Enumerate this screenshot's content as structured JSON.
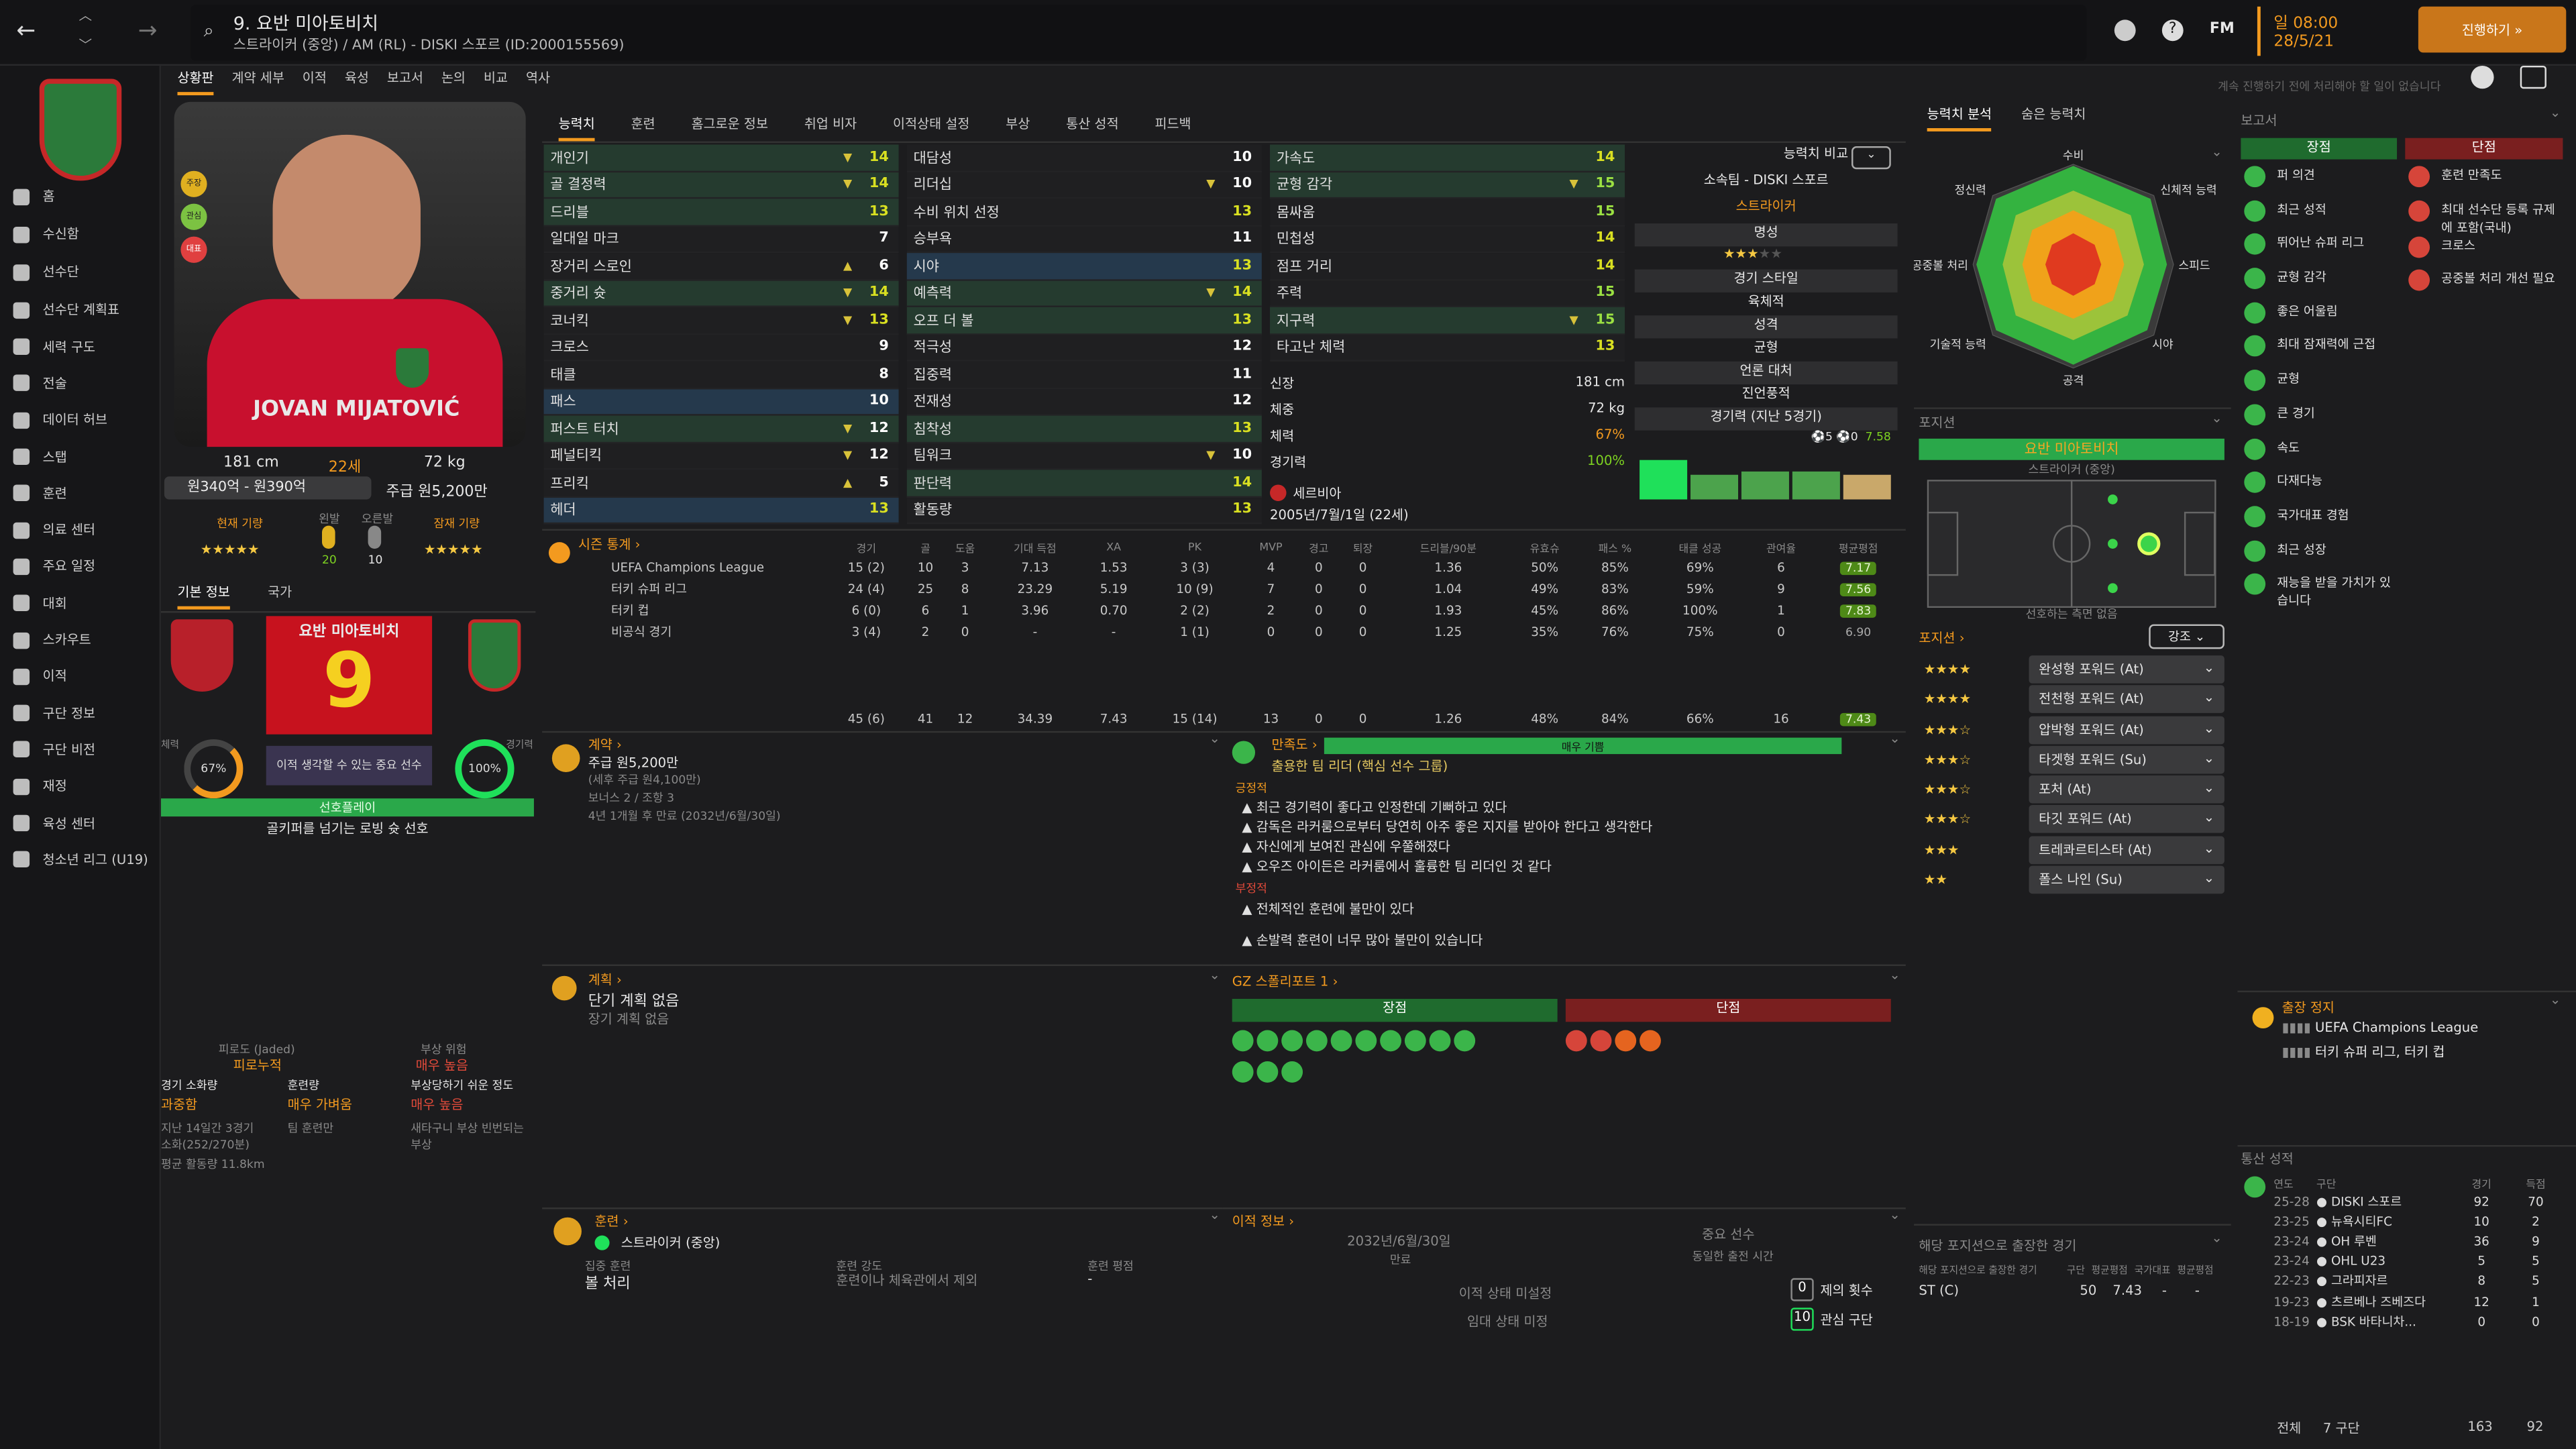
{
  "header": {
    "number_name": "9. 요반 미아토비치",
    "subtitle": "스트라이커 (중앙) / AM (RL) - DISKI 스포르 (ID:2000155569)",
    "time": "일 08:00",
    "date": "28/5/21",
    "continue": "진행하기",
    "fm": "FM",
    "notice_text": "계속 진행하기 전에 처리해야 할 일이 없습니다"
  },
  "nav_tabs": [
    "상황판",
    "계약 세부",
    "이적",
    "육성",
    "보고서",
    "논의",
    "비교",
    "역사"
  ],
  "sidebar": [
    "홈",
    "수신함",
    "선수단",
    "선수단 계획표",
    "세력 구도",
    "전술",
    "데이터 허브",
    "스탭",
    "훈련",
    "의료 센터",
    "주요 일정",
    "대회",
    "스카우트",
    "이적",
    "구단 정보",
    "구단 비전",
    "재정",
    "육성 센터",
    "청소년 리그 (U19)"
  ],
  "player": {
    "jersey_name": "JOVAN MIJATOVIĆ",
    "height": "181 cm",
    "age": "22세",
    "weight": "72 kg",
    "value": "원340억 - 원390억",
    "wage": "주급 원5,200만",
    "cur_ability": "현재 기량",
    "pot_ability": "잠재 기량",
    "left_foot": "왼발",
    "right_foot": "오른발",
    "left_val": "20",
    "right_val": "10",
    "badges": [
      "주장",
      "관심",
      "대표"
    ]
  },
  "basic_tabs": [
    "기본 정보",
    "국가"
  ],
  "card": {
    "name": "요반 미아토비치",
    "number": "9",
    "fitness_label": "체력",
    "fitness": "67%",
    "sharp_label": "경기력",
    "sharp": "100%",
    "role_text": "이적 생각할 수 있는 중요 선수",
    "status": "선호플레이",
    "desc": "골키퍼를 넘기는 로빙 슛 선호"
  },
  "fatigue": {
    "l1": "피로도 (Jaded)",
    "l1v": "피로누적",
    "l2": "부상 위험",
    "l2v": "매우 높음",
    "l3": "경기 소화량",
    "l3v": "과중함",
    "l4": "훈련량",
    "l4v": "매우 가벼움",
    "l5": "부상당하기 쉬운 정도",
    "l5v": "매우 높음",
    "n1": "지난 14일간 3경기",
    "n2": "소화(252/270분)",
    "n3": "평균 활동량 11.8km",
    "n4": "팀 훈련만",
    "n5": "새타구니 부상 빈번되는 부상"
  },
  "attr_tabs": [
    "능력치",
    "훈련",
    "홈그로운 정보",
    "취업 비자",
    "이적상태 설정",
    "부상",
    "통산 성적",
    "피드백"
  ],
  "attr_col1": [
    [
      "개인기",
      "▼",
      "14",
      "hl-green"
    ],
    [
      "골 결정력",
      "▼",
      "14",
      "hl-green"
    ],
    [
      "드리블",
      "",
      "13",
      "hl-green"
    ],
    [
      "일대일 마크",
      "",
      "7",
      "hl-none"
    ],
    [
      "장거리 스로인",
      "▲",
      "6",
      "hl-none"
    ],
    [
      "중거리 슛",
      "▼",
      "14",
      "hl-green"
    ],
    [
      "코너킥",
      "▼",
      "13",
      "hl-none"
    ],
    [
      "크로스",
      "",
      "9",
      "hl-none"
    ],
    [
      "태클",
      "",
      "8",
      "hl-none"
    ],
    [
      "패스",
      "",
      "10",
      "hl-blue"
    ],
    [
      "퍼스트 터치",
      "▼",
      "12",
      "hl-green"
    ],
    [
      "페널티킥",
      "▼",
      "12",
      "hl-none"
    ],
    [
      "프리킥",
      "▲",
      "5",
      "hl-none"
    ],
    [
      "헤더",
      "",
      "13",
      "hl-blue"
    ]
  ],
  "attr_col2": [
    [
      "대담성",
      "",
      "10",
      "hl-none"
    ],
    [
      "리더십",
      "▼",
      "10",
      "hl-none"
    ],
    [
      "수비 위치 선정",
      "",
      "13",
      "hl-none"
    ],
    [
      "승부욕",
      "",
      "11",
      "hl-none"
    ],
    [
      "시야",
      "",
      "13",
      "hl-blue"
    ],
    [
      "예측력",
      "▼",
      "14",
      "hl-green"
    ],
    [
      "오프 더 볼",
      "",
      "13",
      "hl-green"
    ],
    [
      "적극성",
      "",
      "12",
      "hl-none"
    ],
    [
      "집중력",
      "",
      "11",
      "hl-none"
    ],
    [
      "전재성",
      "",
      "12",
      "hl-none"
    ],
    [
      "침착성",
      "",
      "13",
      "hl-green"
    ],
    [
      "팀워크",
      "▼",
      "10",
      "hl-none"
    ],
    [
      "판단력",
      "",
      "14",
      "hl-green"
    ],
    [
      "활동량",
      "",
      "13",
      "hl-none"
    ]
  ],
  "attr_col3": [
    [
      "가속도",
      "",
      "14",
      "hl-green"
    ],
    [
      "균형 감각",
      "▼",
      "15",
      "hl-green"
    ],
    [
      "몸싸움",
      "",
      "15",
      "hl-none"
    ],
    [
      "민첩성",
      "",
      "14",
      "hl-none"
    ],
    [
      "점프 거리",
      "",
      "14",
      "hl-none"
    ],
    [
      "주력",
      "",
      "15",
      "hl-none"
    ],
    [
      "지구력",
      "▼",
      "15",
      "hl-green"
    ],
    [
      "타고난 체력",
      "",
      "13",
      "hl-none"
    ]
  ],
  "physical": {
    "h_l": "신장",
    "h": "181 cm",
    "w_l": "체중",
    "w": "72 kg",
    "f_l": "체력",
    "f": "67%",
    "s_l": "경기력",
    "s": "100%",
    "nation": "세르비아",
    "dob": "2005년/7월/1일 (22세)"
  },
  "compare": {
    "title": "능력치 비교",
    "club": "소속팀 - DISKI 스포르",
    "role": "스트라이커",
    "rep_l": "명성",
    "style_l": "경기 스타일",
    "style": "육체적",
    "pers_l": "성격",
    "pers": "균형",
    "media_l": "언론 대처",
    "media": "진언풍적",
    "form_l": "경기력 (지난 5경기)",
    "goals": "5",
    "assists": "0",
    "avg": "7.58"
  },
  "form": [
    {
      "v": 0.85,
      "c": "#1fe05a"
    },
    {
      "v": 0.55,
      "c": "#4ca34c"
    },
    {
      "v": 0.6,
      "c": "#4ca34c"
    },
    {
      "v": 0.62,
      "c": "#4ca34c"
    },
    {
      "v": 0.55,
      "c": "#c9a86a"
    }
  ],
  "season": {
    "title": "시즌 통계",
    "headers": [
      "경기",
      "골",
      "도움",
      "기대 득점",
      "XA",
      "PK",
      "MVP",
      "경고",
      "퇴장",
      "드리블/90분",
      "유효슈",
      "패스 %",
      "태클 성공",
      "관여율",
      "평균평점"
    ],
    "rows": [
      [
        "UEFA Champions League",
        "15 (2)",
        "10",
        "3",
        "7.13",
        "1.53",
        "3 (3)",
        "4",
        "0",
        "0",
        "1.36",
        "50%",
        "85%",
        "69%",
        "6",
        "7.17"
      ],
      [
        "터키 슈퍼 리그",
        "24 (4)",
        "25",
        "8",
        "23.29",
        "5.19",
        "10 (9)",
        "7",
        "0",
        "0",
        "1.04",
        "49%",
        "83%",
        "59%",
        "9",
        "7.56"
      ],
      [
        "터키 컵",
        "6 (0)",
        "6",
        "1",
        "3.96",
        "0.70",
        "2 (2)",
        "2",
        "0",
        "0",
        "1.93",
        "45%",
        "86%",
        "100%",
        "1",
        "7.83"
      ],
      [
        "비공식 경기",
        "3 (4)",
        "2",
        "0",
        "-",
        "-",
        "1 (1)",
        "0",
        "0",
        "0",
        "1.25",
        "35%",
        "76%",
        "75%",
        "0",
        "6.90"
      ]
    ],
    "total": [
      "45 (6)",
      "41",
      "12",
      "34.39",
      "7.43",
      "15 (14)",
      "13",
      "0",
      "0",
      "1.26",
      "48%",
      "84%",
      "66%",
      "16",
      "7.43"
    ]
  },
  "contract": {
    "title": "계약",
    "wage": "주급 원5,200만",
    "wage2": "(세후 주급 원4,100만)",
    "bonus": "보너스 2 / 조항 3",
    "expiry": "4년 1개월 후 만료 (2032년/6월/30일)"
  },
  "happiness": {
    "title": "만족도",
    "bar": "매우 기쁨",
    "role": "출용한 팀 리더 (핵심 선수 그룹)",
    "pos_l": "긍정적",
    "pos": [
      "최근 경기력이 좋다고 인정한데 기뻐하고 있다",
      "감독은 라커룸으로부터 당연히 아주 좋은 지지를 받아야 한다고 생각한다",
      "자신에게 보여진 관심에 우쭐해졌다",
      "오우즈 아이든은 라커룸에서 훌륭한 팀 리더인 것 같다"
    ],
    "neg_l": "부정적",
    "neg": [
      "전체적인 훈련에 불만이 있다",
      "손발력 훈련이 너무 많아 불만이 있습니다"
    ]
  },
  "plan": {
    "title": "계획",
    "p1": "단기 계획 없음",
    "p2": "장기 계획 없음"
  },
  "gz": {
    "title": "GZ 스폴리포트 1",
    "str": "장점",
    "weak": "단점"
  },
  "training": {
    "title": "훈련",
    "role": "스트라이커 (중앙)",
    "focus_l": "집중 훈련",
    "focus": "볼 처리",
    "int_l": "훈련 강도",
    "int": "훈련이나 체육관에서 제외",
    "rate_l": "훈련 평점",
    "rate": "-"
  },
  "transfer": {
    "title": "이적 정보",
    "date": "2032년/6월/30일",
    "exp": "만료",
    "status": "중요 선수",
    "status2": "동일한 출전 시간",
    "t1": "이적 상태 미설정",
    "t2": "임대 상태 미정",
    "offers_n": "0",
    "offers": "제의 횟수",
    "int_n": "10",
    "int": "관심 구단"
  },
  "radar_tabs": [
    "능력치 분석",
    "숨은 능력치"
  ],
  "radar_labels": [
    "수비",
    "신체적 능력",
    "스피드",
    "시야",
    "공격",
    "기술적 능력",
    "공중볼 처리",
    "정신력"
  ],
  "pos_box": {
    "title": "포지션",
    "name": "요반 미아토비치",
    "pos": "스트라이커 (중앙)",
    "note": "선호하는 측면 없음"
  },
  "roles": {
    "title": "포지션",
    "filter": "강조",
    "rows": [
      [
        "완성형 포워드 (At)",
        4,
        0
      ],
      [
        "전천형 포워드 (At)",
        4,
        0
      ],
      [
        "압박형 포워드 (At)",
        3,
        1
      ],
      [
        "타겟형 포워드 (Su)",
        3,
        1
      ],
      [
        "포처 (At)",
        3,
        1
      ],
      [
        "타깃 포워드 (At)",
        3,
        1
      ],
      [
        "트레콰르티스타 (At)",
        3,
        0
      ],
      [
        "폴스 나인 (Su)",
        2,
        0
      ]
    ]
  },
  "pos_apps": {
    "title": "해당 포지션으로 출장한 경기",
    "h": [
      "해당 포지션으로 출장한 경기",
      "구단",
      "평균평점",
      "국가대표",
      "평균평점"
    ],
    "row": [
      "ST (C)",
      "50",
      "7.43",
      "-",
      "-"
    ]
  },
  "report": {
    "title": "보고서",
    "str": "장점",
    "weak": "단점",
    "s": [
      "퍼 의견",
      "최근 성적",
      "뛰어난 슈퍼 리그",
      "균형 감각",
      "좋은 어울림",
      "최대 잠재력에 근접",
      "균형",
      "큰 경기",
      "속도",
      "다재다능",
      "국가대표 경험",
      "최근 성장",
      "재능을 받을 가치가 있습니다"
    ],
    "w": [
      "훈련 만족도",
      "최대 선수단 등록 규제에 포함(국내)",
      "크로스",
      "공중볼 처리 개선 필요"
    ]
  },
  "suspension": {
    "title": "출장 정지",
    "c1": "UEFA Champions League",
    "c2": "터키 슈퍼 리그, 터키 컵"
  },
  "career": {
    "title": "통산 성적",
    "h": [
      "연도",
      "구단",
      "경기",
      "득점"
    ],
    "rows": [
      [
        "25-28",
        "DISKI 스포르",
        "92",
        "70"
      ],
      [
        "23-25",
        "뉴욕시티FC",
        "10",
        "2"
      ],
      [
        "23-24",
        "OH 루벤",
        "36",
        "9"
      ],
      [
        "23-24",
        "OHL U23",
        "5",
        "5"
      ],
      [
        "22-23",
        "그라피자르",
        "8",
        "5"
      ],
      [
        "19-23",
        "츠르베나 즈베즈다",
        "12",
        "1"
      ],
      [
        "18-19",
        "BSK 바타니차...",
        "0",
        "0"
      ]
    ],
    "total_l": "전체",
    "total_clubs": "7 구단",
    "total_apps": "163",
    "total_goals": "92"
  },
  "colors": {
    "accent": "#f39a1f",
    "green": "#3bb54a",
    "red": "#d6453a",
    "blue_row": "#25394c"
  }
}
